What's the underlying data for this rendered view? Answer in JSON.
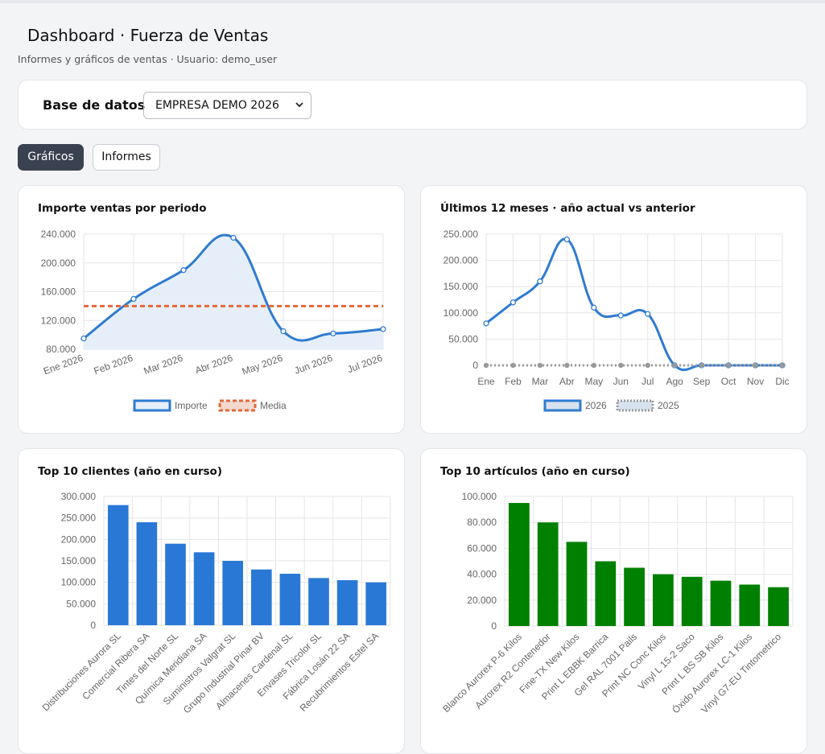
{
  "header": {
    "title": "Dashboard · Fuerza de Ventas",
    "subtitle": "Informes y gráficos de ventas · Usuario: demo_user"
  },
  "database": {
    "label": "Base de datos",
    "selected": "EMPRESA DEMO 2026"
  },
  "tabs": [
    {
      "label": "Gráficos",
      "active": true
    },
    {
      "label": "Informes",
      "active": false
    }
  ],
  "chart_data": [
    {
      "type": "line",
      "title": "Importe ventas por periodo",
      "categories": [
        "Ene 2026",
        "Feb 2026",
        "Mar 2026",
        "Abr 2026",
        "May 2026",
        "Jun 2026",
        "Jul 2026"
      ],
      "series": [
        {
          "name": "Importe",
          "values": [
            95000,
            150000,
            190000,
            235000,
            105000,
            102000,
            108000
          ],
          "color": "#2f7bd0",
          "fill": "#e6eff9"
        },
        {
          "name": "Media",
          "values": [
            140000,
            140000,
            140000,
            140000,
            140000,
            140000,
            140000
          ],
          "color": "#e4683a",
          "dashed": true
        }
      ],
      "ylim": [
        80000,
        240000
      ],
      "yticks": [
        "80.000",
        "120.000",
        "160.000",
        "200.000",
        "240.000"
      ],
      "grid": true,
      "legend": "bottom"
    },
    {
      "type": "line",
      "title": "Últimos 12 meses · año actual vs anterior",
      "categories": [
        "Ene",
        "Feb",
        "Mar",
        "Abr",
        "May",
        "Jun",
        "Jul",
        "Ago",
        "Sep",
        "Oct",
        "Nov",
        "Dic"
      ],
      "series": [
        {
          "name": "2026",
          "values": [
            80000,
            120000,
            160000,
            240000,
            110000,
            95000,
            98000,
            0,
            0,
            0,
            0,
            0
          ],
          "color": "#2f7bd0"
        },
        {
          "name": "2025",
          "values": [
            0,
            0,
            0,
            0,
            0,
            0,
            0,
            0,
            0,
            0,
            0,
            0
          ],
          "color": "#999999",
          "dashed": true
        }
      ],
      "ylim": [
        0,
        250000
      ],
      "yticks": [
        "0",
        "50.000",
        "100.000",
        "150.000",
        "200.000",
        "250.000"
      ],
      "grid": true,
      "legend": "bottom"
    },
    {
      "type": "bar",
      "title": "Top 10 clientes (año en curso)",
      "categories": [
        "Distribuciones Aurora SL",
        "Comercial Ribera SA",
        "Tintes del Norte SL",
        "Química Meridiana SA",
        "Suministros Valgrat SL",
        "Grupo Industrial Pinar BV",
        "Almacenes Cardenal SL",
        "Envases Tricolor SL",
        "Fábrica Losán 22 SA",
        "Recubrimientos Estel SA"
      ],
      "values": [
        280000,
        240000,
        190000,
        170000,
        150000,
        130000,
        120000,
        110000,
        105000,
        100000
      ],
      "color": "#2a78d6",
      "ylim": [
        0,
        300000
      ],
      "yticks": [
        "0",
        "50.000",
        "100.000",
        "150.000",
        "200.000",
        "250.000",
        "300.000"
      ],
      "grid": true
    },
    {
      "type": "bar",
      "title": "Top 10 artículos (año en curso)",
      "categories": [
        "Blanco Aurorex P-6 Kilos",
        "Aurorex R2 Contenedor",
        "Fine-TX New Kilos",
        "Print L EBBK Barrica",
        "Gel RAL 7001 Pails",
        "Print NC Conc Kilos",
        "Vinyl L 15-2 Saco",
        "Print L BS SB Kilos",
        "Óxido Aurorex LC-1 Kilos",
        "Vinyl G7-EU Tintometrico"
      ],
      "values": [
        95000,
        80000,
        65000,
        50000,
        45000,
        40000,
        38000,
        35000,
        32000,
        30000
      ],
      "color": "#008000",
      "ylim": [
        0,
        100000
      ],
      "yticks": [
        "0",
        "20.000",
        "40.000",
        "60.000",
        "80.000",
        "100.000"
      ],
      "grid": true
    }
  ]
}
